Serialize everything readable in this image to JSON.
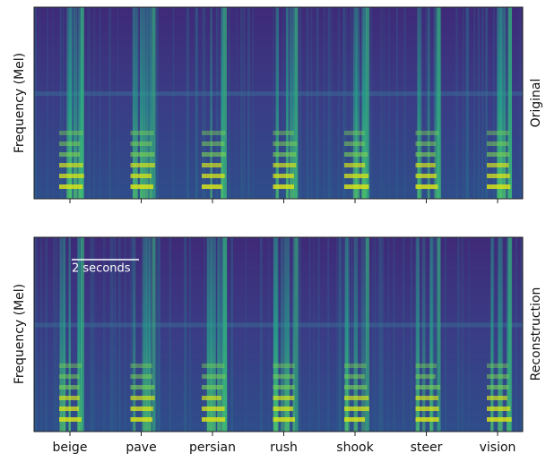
{
  "panels": [
    {
      "ylabel": "Frequency (Mel)",
      "side_label": "Original"
    },
    {
      "ylabel": "Frequency (Mel)",
      "side_label": "Reconstruction",
      "annotation": "2 seconds"
    }
  ],
  "categories": [
    "beige",
    "pave",
    "persian",
    "rush",
    "shook",
    "steer",
    "vision"
  ]
}
